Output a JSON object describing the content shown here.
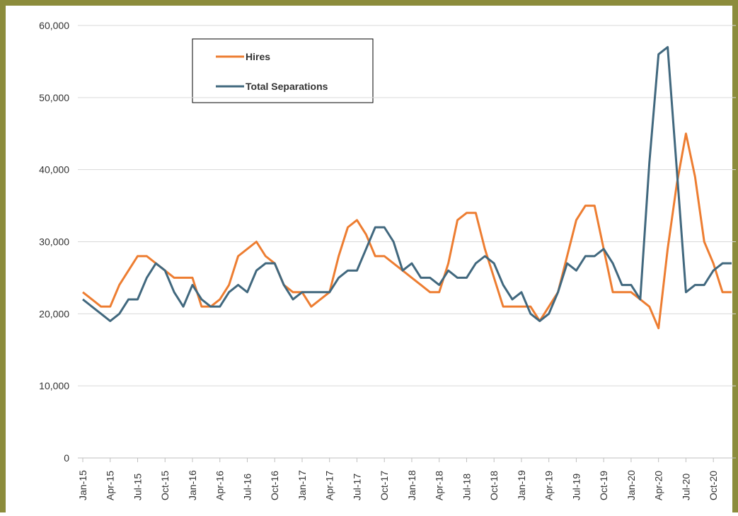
{
  "chart_data": {
    "type": "line",
    "categories": [
      "Jan-15",
      null,
      null,
      "Apr-15",
      null,
      null,
      "Jul-15",
      null,
      null,
      "Oct-15",
      null,
      null,
      "Jan-16",
      null,
      null,
      "Apr-16",
      null,
      null,
      "Jul-16",
      null,
      null,
      "Oct-16",
      null,
      null,
      "Jan-17",
      null,
      null,
      "Apr-17",
      null,
      null,
      "Jul-17",
      null,
      null,
      "Oct-17",
      null,
      null,
      "Jan-18",
      null,
      null,
      "Apr-18",
      null,
      null,
      "Jul-18",
      null,
      null,
      "Oct-18",
      null,
      null,
      "Jan-19",
      null,
      null,
      "Apr-19",
      null,
      null,
      "Jul-19",
      null,
      null,
      "Oct-19",
      null,
      null,
      "Jan-20",
      null,
      null,
      "Apr-20",
      null,
      null,
      "Jul-20",
      null,
      null,
      "Oct-20",
      null,
      null
    ],
    "series": [
      {
        "name": "Hires",
        "color": "#ed7d31",
        "values": [
          23000,
          22000,
          21000,
          21000,
          24000,
          26000,
          28000,
          28000,
          27000,
          26000,
          25000,
          25000,
          25000,
          21000,
          21000,
          22000,
          24000,
          28000,
          29000,
          30000,
          28000,
          27000,
          24000,
          23000,
          23000,
          21000,
          22000,
          23000,
          28000,
          32000,
          33000,
          31000,
          28000,
          28000,
          27000,
          26000,
          25000,
          24000,
          23000,
          23000,
          27000,
          33000,
          34000,
          34000,
          29000,
          25000,
          21000,
          21000,
          21000,
          21000,
          19000,
          21000,
          23000,
          28000,
          33000,
          35000,
          35000,
          29000,
          23000,
          23000,
          23000,
          22000,
          21000,
          18000,
          29000,
          38000,
          45000,
          39000,
          30000,
          27000,
          23000,
          23000
        ]
      },
      {
        "name": "Total Separations",
        "color": "#41687e",
        "values": [
          22000,
          21000,
          20000,
          19000,
          20000,
          22000,
          22000,
          25000,
          27000,
          26000,
          23000,
          21000,
          24000,
          22000,
          21000,
          21000,
          23000,
          24000,
          23000,
          26000,
          27000,
          27000,
          24000,
          22000,
          23000,
          23000,
          23000,
          23000,
          25000,
          26000,
          26000,
          29000,
          32000,
          32000,
          30000,
          26000,
          27000,
          25000,
          25000,
          24000,
          26000,
          25000,
          25000,
          27000,
          28000,
          27000,
          24000,
          22000,
          23000,
          20000,
          19000,
          20000,
          23000,
          27000,
          26000,
          28000,
          28000,
          29000,
          27000,
          24000,
          24000,
          22000,
          41000,
          56000,
          57000,
          40000,
          23000,
          24000,
          24000,
          26000,
          27000,
          27000
        ]
      }
    ],
    "ylim": [
      0,
      60000
    ],
    "yticks": [
      0,
      {
        "value": 10000,
        "label": "10,000"
      },
      {
        "value": 20000,
        "label": "20,000"
      },
      {
        "value": 30000,
        "label": "30,000"
      },
      {
        "value": 40000,
        "label": "40,000"
      },
      {
        "value": 50000,
        "label": "50,000"
      },
      {
        "value": 60000,
        "label": "60,000"
      }
    ],
    "grid": true
  }
}
